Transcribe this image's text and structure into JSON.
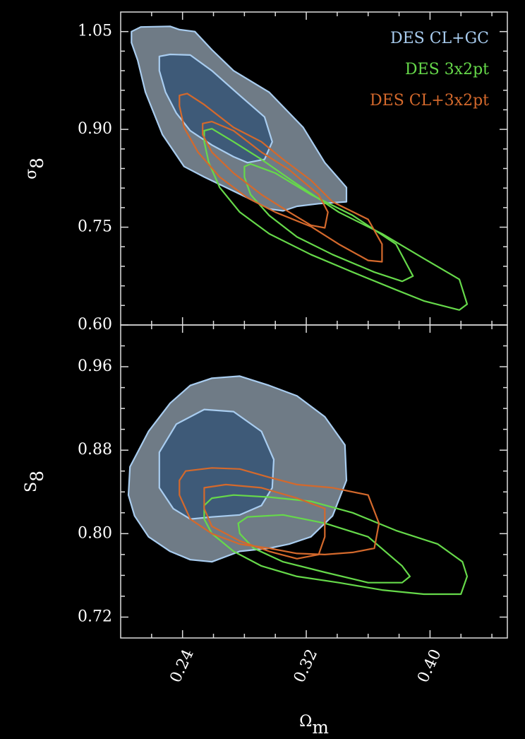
{
  "chart_data": [
    {
      "type": "contour",
      "ylabel": {
        "base": "σ",
        "sub": "8"
      },
      "xlim": [
        0.2,
        0.45
      ],
      "ylim": [
        0.6,
        1.08
      ],
      "xticks": [
        0.24,
        0.32,
        0.4
      ],
      "show_xticklabels": false,
      "xminorticks": [
        0.22,
        0.26,
        0.28,
        0.3,
        0.34,
        0.36,
        0.38,
        0.42,
        0.44
      ],
      "yticks": [
        1.05,
        {
          "value": 0.9,
          "label": "0.90"
        },
        0.75,
        {
          "value": 0.6,
          "label": "0.60"
        }
      ],
      "yminorticks": [
        0.63,
        0.66,
        0.69,
        0.72,
        0.78,
        0.81,
        0.84,
        0.87,
        0.93,
        0.96,
        0.99,
        1.02
      ],
      "legend": "upper right",
      "series": [
        {
          "name": "DES CL+GC",
          "color": "#a9cdf0",
          "fill": [
            "#6f7b86",
            "#3e5a78"
          ],
          "levels": [
            {
              "x": [
                0.207,
                0.213,
                0.232,
                0.238,
                0.248,
                0.259,
                0.273,
                0.296,
                0.318,
                0.332,
                0.346,
                0.346,
                0.328,
                0.314,
                0.305,
                0.296,
                0.282,
                0.268,
                0.254,
                0.241,
                0.227,
                0.216,
                0.211,
                0.207
              ],
              "y": [
                1.05,
                1.057,
                1.058,
                1.053,
                1.05,
                1.022,
                0.99,
                0.957,
                0.903,
                0.849,
                0.811,
                0.789,
                0.786,
                0.782,
                0.775,
                0.778,
                0.795,
                0.811,
                0.827,
                0.843,
                0.892,
                0.957,
                1.006,
                1.033
              ]
            },
            {
              "x": [
                0.225,
                0.232,
                0.245,
                0.259,
                0.277,
                0.293,
                0.298,
                0.293,
                0.282,
                0.273,
                0.259,
                0.245,
                0.236,
                0.229,
                0.225
              ],
              "y": [
                1.012,
                1.015,
                1.014,
                0.99,
                0.952,
                0.919,
                0.881,
                0.854,
                0.849,
                0.858,
                0.876,
                0.898,
                0.925,
                0.957,
                0.99
              ]
            }
          ]
        },
        {
          "name": "DES 3x2pt",
          "color": "#66d94a",
          "levels": [
            {
              "x": [
                0.254,
                0.259,
                0.273,
                0.291,
                0.314,
                0.341,
                0.369,
                0.396,
                0.419,
                0.424,
                0.419,
                0.396,
                0.378,
                0.35,
                0.323,
                0.296,
                0.277,
                0.264,
                0.257,
                0.254
              ],
              "y": [
                0.898,
                0.901,
                0.881,
                0.854,
                0.816,
                0.773,
                0.74,
                0.702,
                0.67,
                0.632,
                0.623,
                0.637,
                0.654,
                0.681,
                0.708,
                0.74,
                0.773,
                0.811,
                0.849,
                0.881
              ]
            },
            {
              "x": [
                0.28,
                0.284,
                0.3,
                0.323,
                0.35,
                0.378,
                0.389,
                0.382,
                0.364,
                0.337,
                0.314,
                0.296,
                0.284,
                0.28
              ],
              "y": [
                0.843,
                0.847,
                0.833,
                0.8,
                0.768,
                0.724,
                0.675,
                0.667,
                0.681,
                0.708,
                0.735,
                0.768,
                0.8,
                0.827
              ]
            }
          ]
        },
        {
          "name": "DES CL+3x2pt",
          "color": "#d4692c",
          "levels": [
            {
              "x": [
                0.238,
                0.243,
                0.254,
                0.273,
                0.291,
                0.305,
                0.323,
                0.337,
                0.36,
                0.369,
                0.369,
                0.36,
                0.341,
                0.323,
                0.3,
                0.282,
                0.264,
                0.25,
                0.241,
                0.238
              ],
              "y": [
                0.952,
                0.955,
                0.938,
                0.903,
                0.881,
                0.854,
                0.822,
                0.789,
                0.762,
                0.724,
                0.697,
                0.699,
                0.724,
                0.751,
                0.773,
                0.795,
                0.827,
                0.865,
                0.903,
                0.936
              ]
            },
            {
              "x": [
                0.253,
                0.259,
                0.273,
                0.291,
                0.309,
                0.328,
                0.334,
                0.332,
                0.323,
                0.309,
                0.291,
                0.273,
                0.259,
                0.253
              ],
              "y": [
                0.909,
                0.912,
                0.898,
                0.865,
                0.838,
                0.8,
                0.773,
                0.749,
                0.753,
                0.773,
                0.8,
                0.833,
                0.865,
                0.892
              ]
            }
          ]
        }
      ]
    },
    {
      "type": "contour",
      "ylabel": {
        "base": "S",
        "sub": "8"
      },
      "xlabel": {
        "base": "Ω",
        "sub": "m"
      },
      "xlim": [
        0.2,
        0.45
      ],
      "ylim": [
        0.7,
        1.0
      ],
      "xticks": [
        0.24,
        0.32,
        {
          "value": 0.4,
          "label": "0.40"
        }
      ],
      "show_xticklabels": true,
      "xminorticks": [
        0.22,
        0.26,
        0.28,
        0.3,
        0.34,
        0.36,
        0.38,
        0.42,
        0.44
      ],
      "yticks": [
        0.96,
        0.88,
        {
          "value": 0.8,
          "label": "0.80"
        },
        0.72
      ],
      "yminorticks": [
        0.74,
        0.76,
        0.78,
        0.82,
        0.84,
        0.86,
        0.9,
        0.92,
        0.94,
        0.98
      ],
      "series": [
        {
          "color": "#a9cdf0",
          "fill": [
            "#6f7b86",
            "#3e5a78"
          ],
          "levels": [
            {
              "x": [
                0.206,
                0.218,
                0.232,
                0.245,
                0.259,
                0.277,
                0.296,
                0.314,
                0.332,
                0.345,
                0.346,
                0.337,
                0.323,
                0.309,
                0.296,
                0.277,
                0.259,
                0.245,
                0.232,
                0.218,
                0.209,
                0.205
              ],
              "y": [
                0.864,
                0.898,
                0.925,
                0.942,
                0.949,
                0.951,
                0.942,
                0.932,
                0.912,
                0.885,
                0.851,
                0.817,
                0.797,
                0.79,
                0.786,
                0.783,
                0.773,
                0.775,
                0.783,
                0.797,
                0.817,
                0.837
              ]
            },
            {
              "x": [
                0.225,
                0.236,
                0.254,
                0.273,
                0.291,
                0.299,
                0.298,
                0.291,
                0.277,
                0.259,
                0.245,
                0.234,
                0.225
              ],
              "y": [
                0.878,
                0.905,
                0.919,
                0.917,
                0.898,
                0.871,
                0.844,
                0.827,
                0.818,
                0.816,
                0.814,
                0.824,
                0.844
              ]
            }
          ]
        },
        {
          "color": "#66d94a",
          "levels": [
            {
              "x": [
                0.254,
                0.259,
                0.273,
                0.296,
                0.323,
                0.35,
                0.378,
                0.405,
                0.421,
                0.424,
                0.42,
                0.396,
                0.369,
                0.341,
                0.314,
                0.291,
                0.273,
                0.259,
                0.254
              ],
              "y": [
                0.827,
                0.834,
                0.837,
                0.835,
                0.831,
                0.82,
                0.803,
                0.79,
                0.773,
                0.759,
                0.742,
                0.742,
                0.746,
                0.753,
                0.759,
                0.769,
                0.783,
                0.8,
                0.814
              ]
            },
            {
              "x": [
                0.276,
                0.282,
                0.305,
                0.332,
                0.36,
                0.382,
                0.387,
                0.382,
                0.36,
                0.332,
                0.305,
                0.286,
                0.277
              ],
              "y": [
                0.81,
                0.816,
                0.818,
                0.81,
                0.797,
                0.769,
                0.759,
                0.753,
                0.753,
                0.763,
                0.773,
                0.786,
                0.8
              ]
            }
          ]
        },
        {
          "color": "#d4692c",
          "levels": [
            {
              "x": [
                0.238,
                0.242,
                0.259,
                0.277,
                0.296,
                0.314,
                0.337,
                0.36,
                0.367,
                0.364,
                0.35,
                0.332,
                0.314,
                0.296,
                0.277,
                0.259,
                0.245,
                0.238
              ],
              "y": [
                0.851,
                0.86,
                0.863,
                0.862,
                0.854,
                0.847,
                0.844,
                0.837,
                0.81,
                0.786,
                0.782,
                0.78,
                0.781,
                0.786,
                0.79,
                0.8,
                0.814,
                0.837
              ]
            },
            {
              "x": [
                0.254,
                0.268,
                0.291,
                0.314,
                0.332,
                0.332,
                0.328,
                0.314,
                0.296,
                0.277,
                0.259,
                0.254
              ],
              "y": [
                0.844,
                0.847,
                0.844,
                0.834,
                0.824,
                0.797,
                0.78,
                0.776,
                0.783,
                0.793,
                0.807,
                0.824
              ]
            }
          ]
        }
      ]
    }
  ]
}
